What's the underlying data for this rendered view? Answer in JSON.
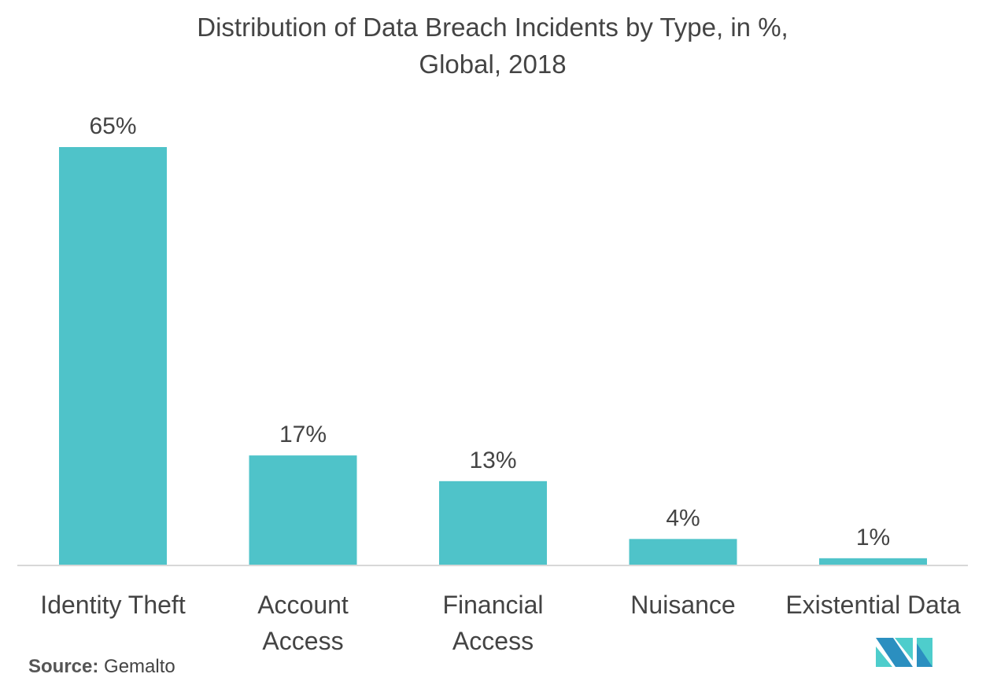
{
  "chart_data": {
    "type": "bar",
    "title": "Distribution of Data Breach Incidents by Type, in %,",
    "subtitle": "Global, 2018",
    "categories": [
      "Identity Theft",
      "Account Access",
      "Financial Access",
      "Nuisance",
      "Existential Data"
    ],
    "category_lines": [
      [
        "Identity Theft"
      ],
      [
        "Account",
        "Access"
      ],
      [
        "Financial",
        "Access"
      ],
      [
        "Nuisance"
      ],
      [
        "Existential Data"
      ]
    ],
    "values": [
      65,
      17,
      13,
      4,
      1
    ],
    "value_labels": [
      "65%",
      "17%",
      "13%",
      "4%",
      "1%"
    ],
    "xlabel": "",
    "ylabel": "",
    "ylim": [
      0,
      65
    ],
    "grid": false,
    "bar_color": "#4fc3c9"
  },
  "source": {
    "label": "Source:",
    "value": "Gemalto"
  },
  "logo": {
    "colors": [
      "#2b8fc0",
      "#4ecdcc"
    ]
  }
}
